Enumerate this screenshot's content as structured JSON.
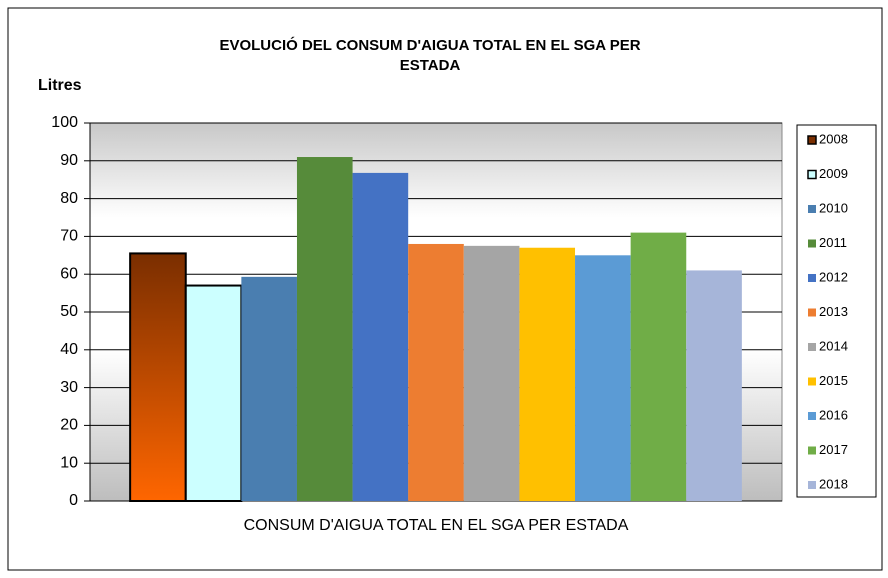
{
  "chart_data": {
    "type": "bar",
    "title": [
      "EVOLUCIÓ DEL CONSUM D'AIGUA  TOTAL EN EL SGA PER",
      "ESTADA"
    ],
    "y_label": "Litres",
    "categories": [
      "CONSUM D'AIGUA TOTAL EN EL SGA PER ESTADA"
    ],
    "series": [
      {
        "name": "2008",
        "color": "#ff6600",
        "gradient": [
          "#7a2e00",
          "#ff6600"
        ],
        "border": "#000000",
        "values": [
          65.5
        ]
      },
      {
        "name": "2009",
        "color": "#ccffff",
        "border": "#000000",
        "values": [
          57
        ]
      },
      {
        "name": "2010",
        "color": "#4a7eb0",
        "values": [
          59.3
        ]
      },
      {
        "name": "2011",
        "color": "#568b3a",
        "values": [
          91
        ]
      },
      {
        "name": "2012",
        "color": "#4472c4",
        "values": [
          86.8
        ]
      },
      {
        "name": "2013",
        "color": "#ed7d31",
        "values": [
          68
        ]
      },
      {
        "name": "2014",
        "color": "#a5a5a5",
        "values": [
          67.5
        ]
      },
      {
        "name": "2015",
        "color": "#ffc000",
        "values": [
          67
        ]
      },
      {
        "name": "2016",
        "color": "#5b9bd5",
        "values": [
          65
        ]
      },
      {
        "name": "2017",
        "color": "#70ad47",
        "values": [
          71
        ]
      },
      {
        "name": "2018",
        "color": "#a6b5d9",
        "values": [
          61
        ]
      }
    ],
    "ylim": [
      0,
      100
    ],
    "yticks": [
      0,
      10,
      20,
      30,
      40,
      50,
      60,
      70,
      80,
      90,
      100
    ],
    "grid": true,
    "legend": "right"
  }
}
